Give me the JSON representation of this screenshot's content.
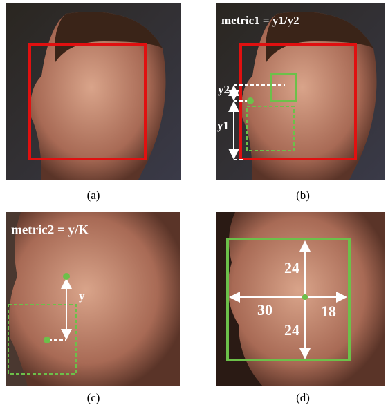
{
  "panels": [
    {
      "caption": "(a)"
    },
    {
      "caption": "(b)",
      "title": "metric1 = y1/y2",
      "labels": [
        "y2",
        "y1"
      ]
    },
    {
      "caption": "(c)",
      "title": "metric2 = y/K",
      "labels": [
        "y"
      ]
    },
    {
      "caption": "(d)",
      "labels": [
        24,
        24,
        30,
        18
      ]
    }
  ]
}
